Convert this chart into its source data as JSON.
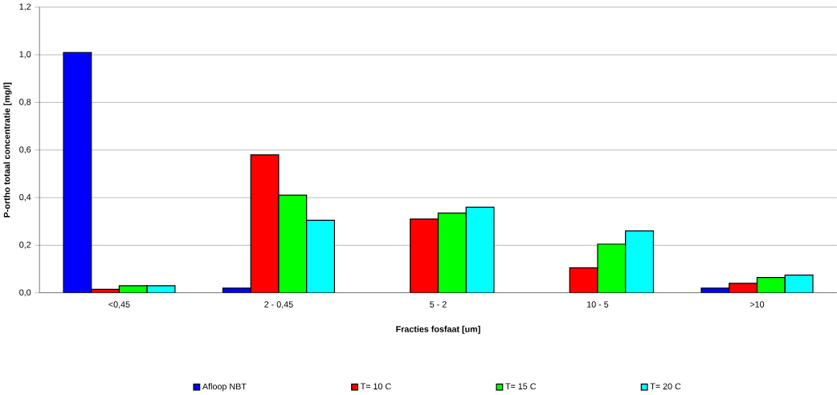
{
  "chart_data": {
    "type": "bar",
    "xlabel": "Fracties fosfaat [um]",
    "ylabel": "P-ortho totaal concentratie [mg/l]",
    "categories": [
      "<0,45",
      "2 - 0,45",
      "5 - 2",
      "10 - 5",
      ">10"
    ],
    "series": [
      {
        "name": "Afloop NBT",
        "color": "#0000ff",
        "values": [
          1.01,
          0.02,
          null,
          null,
          0.02
        ]
      },
      {
        "name": "T= 10 C",
        "color": "#ff0000",
        "values": [
          0.015,
          0.58,
          0.31,
          0.105,
          0.04
        ]
      },
      {
        "name": "T= 15 C",
        "color": "#00ff00",
        "values": [
          0.03,
          0.41,
          0.335,
          0.205,
          0.065
        ]
      },
      {
        "name": "T= 20 C",
        "color": "#00ffff",
        "values": [
          0.03,
          0.305,
          0.36,
          0.26,
          0.075
        ]
      }
    ],
    "ylim": [
      0,
      1.2
    ],
    "yticks": [
      {
        "value": 0,
        "label": "0,0"
      },
      {
        "value": 0.2,
        "label": "0,2"
      },
      {
        "value": 0.4,
        "label": "0,4"
      },
      {
        "value": 0.6,
        "label": "0,6"
      },
      {
        "value": 0.8,
        "label": "0,8"
      },
      {
        "value": 1.0,
        "label": "1,0"
      },
      {
        "value": 1.2,
        "label": "1,2"
      }
    ],
    "grid": "y",
    "legend": "bottom"
  }
}
